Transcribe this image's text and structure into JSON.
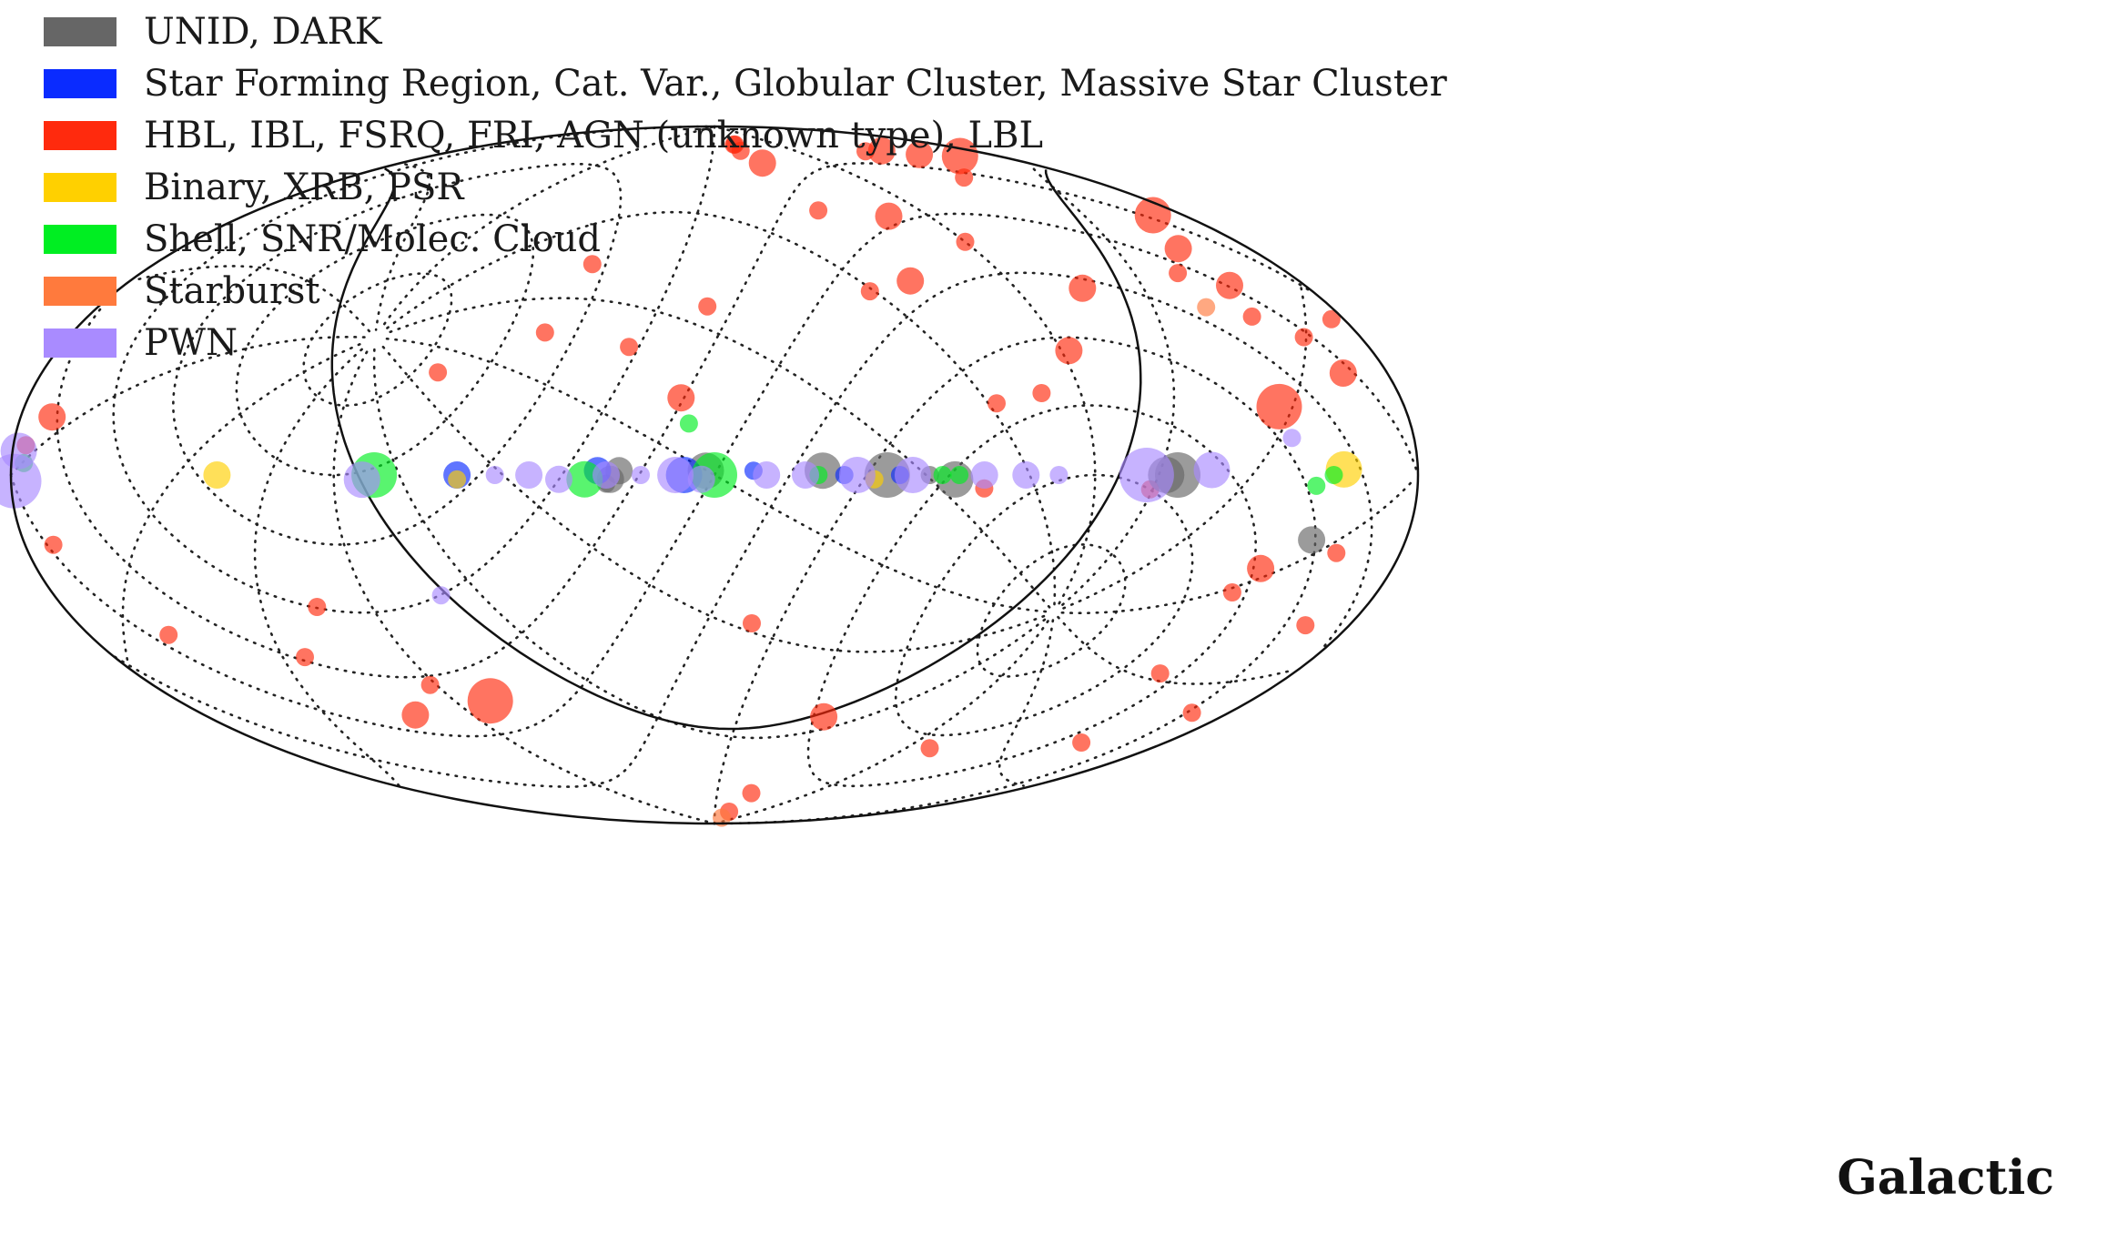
{
  "chart_data": {
    "type": "scatter",
    "projection": "Hammer-Aitoff (galactic, grid dotted, ecliptic equator overlaid)",
    "coordinate_frame": "Galactic",
    "legend_position": "top-left",
    "grid": true,
    "series": [
      {
        "name": "UNID, DARK",
        "color": "#666666"
      },
      {
        "name": "Star Forming Region, Cat. Var., Globular Cluster, Massive Star Cluster",
        "color": "#0a2bff"
      },
      {
        "name": "HBL, IBL, FSRQ, FRI, AGN (unknown type), LBL",
        "color": "#ff2a0d"
      },
      {
        "name": "Binary, XRB, PSR",
        "color": "#ffd000"
      },
      {
        "name": "Shell, SNR/Molec. Cloud",
        "color": "#00ee22"
      },
      {
        "name": "Starburst",
        "color": "#ff7a3d"
      },
      {
        "name": "PWN",
        "color": "#a98bff"
      }
    ],
    "points": [
      {
        "s": 2,
        "l": 167,
        "b": 69,
        "size": 4
      },
      {
        "s": 2,
        "l": 154,
        "b": 72,
        "size": 3
      },
      {
        "s": 2,
        "l": 145,
        "b": 75,
        "size": 3
      },
      {
        "s": 2,
        "l": 136,
        "b": 76,
        "size": 2
      },
      {
        "s": 2,
        "l": 138,
        "b": 66,
        "size": 2
      },
      {
        "s": 2,
        "l": 170,
        "b": 50,
        "size": 4
      },
      {
        "s": 2,
        "l": 157,
        "b": 44,
        "size": 3
      },
      {
        "s": 2,
        "l": 156,
        "b": 36,
        "size": 3
      },
      {
        "s": 2,
        "l": 162,
        "b": 25,
        "size": 2
      },
      {
        "s": 2,
        "l": 145,
        "b": 40,
        "size": 2
      },
      {
        "s": 2,
        "l": 152,
        "b": 30,
        "size": 2
      },
      {
        "s": 2,
        "l": 176,
        "b": 27,
        "size": 2
      },
      {
        "s": 2,
        "l": 166,
        "b": 18,
        "size": 3
      },
      {
        "s": 2,
        "l": 142,
        "b": 13,
        "size": 5
      },
      {
        "s": 2,
        "l": 110,
        "b": 40,
        "size": 3
      },
      {
        "s": 2,
        "l": 92,
        "b": 27,
        "size": 3
      },
      {
        "s": 2,
        "l": 80,
        "b": 18,
        "size": 2
      },
      {
        "s": 2,
        "l": 68,
        "b": 16,
        "size": 2
      },
      {
        "s": 2,
        "l": 90,
        "b": 53,
        "size": 2
      },
      {
        "s": 2,
        "l": 74,
        "b": 61,
        "size": 3
      },
      {
        "s": 2,
        "l": 60,
        "b": 45,
        "size": 3
      },
      {
        "s": 2,
        "l": 46,
        "b": 43,
        "size": 2
      },
      {
        "s": 2,
        "l": 47,
        "b": 64,
        "size": 2
      },
      {
        "s": 2,
        "l": 42,
        "b": 78,
        "size": 3
      },
      {
        "s": 2,
        "l": 33,
        "b": 82,
        "size": 2
      },
      {
        "s": 2,
        "l": 34,
        "b": 84,
        "size": 2
      },
      {
        "s": 2,
        "l": 32,
        "b": 84,
        "size": 2
      },
      {
        "s": 2,
        "l": -40,
        "b": 50,
        "size": 2
      },
      {
        "s": 2,
        "l": -45,
        "b": 33,
        "size": 2
      },
      {
        "s": 2,
        "l": -22,
        "b": 30,
        "size": 2
      },
      {
        "s": 2,
        "l": -2,
        "b": 40,
        "size": 2
      },
      {
        "s": 2,
        "l": -69,
        "b": 23,
        "size": 2
      },
      {
        "s": 2,
        "l": -8,
        "b": 18,
        "size": 3
      },
      {
        "s": 2,
        "l": -105,
        "b": -28,
        "size": 2
      },
      {
        "s": 2,
        "l": -121,
        "b": -38,
        "size": 2
      },
      {
        "s": 2,
        "l": -110,
        "b": -53,
        "size": 3
      },
      {
        "s": 2,
        "l": -92,
        "b": -47,
        "size": 2
      },
      {
        "s": 2,
        "l": -78,
        "b": -52,
        "size": 5
      },
      {
        "s": 2,
        "l": -176,
        "b": 5,
        "size": 2
      },
      {
        "s": 2,
        "l": -170,
        "b": 10,
        "size": 3
      },
      {
        "s": 2,
        "l": -171,
        "b": -12,
        "size": 2
      },
      {
        "s": 2,
        "l": -155,
        "b": -30,
        "size": 2
      },
      {
        "s": 2,
        "l": 10,
        "b": -35,
        "size": 2
      },
      {
        "s": 2,
        "l": 42,
        "b": -58,
        "size": 3
      },
      {
        "s": 2,
        "l": 38,
        "b": -80,
        "size": 2
      },
      {
        "s": 2,
        "l": 36,
        "b": -86,
        "size": 2
      },
      {
        "s": 2,
        "l": 100,
        "b": -63,
        "size": 2
      },
      {
        "s": 2,
        "l": 140,
        "b": -18,
        "size": 3
      },
      {
        "s": 2,
        "l": 136,
        "b": -23,
        "size": 2
      },
      {
        "s": 2,
        "l": 160,
        "b": -14,
        "size": 2
      },
      {
        "s": 2,
        "l": 166,
        "b": -27,
        "size": 2
      },
      {
        "s": 2,
        "l": 168,
        "b": -45,
        "size": 2
      },
      {
        "s": 2,
        "l": 138,
        "b": -40,
        "size": 2
      },
      {
        "s": 2,
        "l": 152,
        "b": -55,
        "size": 2
      },
      {
        "s": 2,
        "l": 104,
        "b": -3,
        "size": 2
      },
      {
        "s": 2,
        "l": 63,
        "b": -3,
        "size": 2
      },
      {
        "s": 0,
        "l": 111,
        "b": 0,
        "size": 5
      },
      {
        "s": 0,
        "l": 108,
        "b": 0,
        "size": 4
      },
      {
        "s": 0,
        "l": 56,
        "b": -1,
        "size": 4
      },
      {
        "s": 0,
        "l": 50,
        "b": 0,
        "size": 2
      },
      {
        "s": 0,
        "l": 40,
        "b": 0,
        "size": 5
      },
      {
        "s": 0,
        "l": 25,
        "b": 1,
        "size": 4
      },
      {
        "s": 0,
        "l": -2,
        "b": 1,
        "size": 4
      },
      {
        "s": 0,
        "l": -22,
        "b": 1,
        "size": 3
      },
      {
        "s": 0,
        "l": -24,
        "b": -1,
        "size": 3
      },
      {
        "s": 0,
        "l": -25,
        "b": -2,
        "size": 2
      },
      {
        "s": 0,
        "l": 151,
        "b": -12,
        "size": 3
      },
      {
        "s": 1,
        "l": 43,
        "b": 0,
        "size": 2
      },
      {
        "s": 1,
        "l": 30,
        "b": 0,
        "size": 2
      },
      {
        "s": 1,
        "l": 9,
        "b": 1,
        "size": 2
      },
      {
        "s": 1,
        "l": -7,
        "b": 0,
        "size": 4
      },
      {
        "s": 1,
        "l": -27,
        "b": 1,
        "size": 3
      },
      {
        "s": 1,
        "l": -60,
        "b": 0,
        "size": 3
      },
      {
        "s": 3,
        "l": 37,
        "b": -1,
        "size": 2
      },
      {
        "s": 3,
        "l": -60,
        "b": -1,
        "size": 2
      },
      {
        "s": 3,
        "l": -120,
        "b": 0,
        "size": 3
      },
      {
        "s": 3,
        "l": 157,
        "b": 1,
        "size": 4
      },
      {
        "s": 4,
        "l": 24,
        "b": 0,
        "size": 2
      },
      {
        "s": 4,
        "l": 57,
        "b": 0,
        "size": 2
      },
      {
        "s": 4,
        "l": 53,
        "b": 0,
        "size": 2
      },
      {
        "s": 4,
        "l": 0,
        "b": 0,
        "size": 5
      },
      {
        "s": 4,
        "l": -30,
        "b": -1,
        "size": 4
      },
      {
        "s": 4,
        "l": -80,
        "b": 0,
        "size": 5
      },
      {
        "s": 4,
        "l": -6,
        "b": 12,
        "size": 2
      },
      {
        "s": 4,
        "l": -176,
        "b": 2,
        "size": 2
      },
      {
        "s": 4,
        "l": 154,
        "b": 0,
        "size": 2
      },
      {
        "s": 4,
        "l": 149,
        "b": -2,
        "size": 2
      },
      {
        "s": 5,
        "l": 141,
        "b": 33,
        "size": 2
      },
      {
        "s": 5,
        "l": 35,
        "b": -88,
        "size": 2
      },
      {
        "s": 6,
        "l": 103,
        "b": 0,
        "size": 6
      },
      {
        "s": 6,
        "l": 120,
        "b": 1,
        "size": 4
      },
      {
        "s": 6,
        "l": 143,
        "b": 7,
        "size": 2
      },
      {
        "s": 6,
        "l": 81,
        "b": 0,
        "size": 2
      },
      {
        "s": 6,
        "l": 73,
        "b": 0,
        "size": 3
      },
      {
        "s": 6,
        "l": 63,
        "b": 0,
        "size": 3
      },
      {
        "s": 6,
        "l": 46,
        "b": 0,
        "size": 4
      },
      {
        "s": 6,
        "l": 33,
        "b": 0,
        "size": 4
      },
      {
        "s": 6,
        "l": 21,
        "b": 0,
        "size": 3
      },
      {
        "s": 6,
        "l": 12,
        "b": 0,
        "size": 3
      },
      {
        "s": 6,
        "l": -3,
        "b": -1,
        "size": 3
      },
      {
        "s": 6,
        "l": -9,
        "b": 0,
        "size": 4
      },
      {
        "s": 6,
        "l": -17,
        "b": 0,
        "size": 2
      },
      {
        "s": 6,
        "l": -25,
        "b": 0,
        "size": 3
      },
      {
        "s": 6,
        "l": -36,
        "b": -1,
        "size": 3
      },
      {
        "s": 6,
        "l": -43,
        "b": 0,
        "size": 3
      },
      {
        "s": 6,
        "l": -51,
        "b": 0,
        "size": 2
      },
      {
        "s": 6,
        "l": -83,
        "b": -1,
        "size": 4
      },
      {
        "s": 6,
        "l": -70,
        "b": -27,
        "size": 2
      },
      {
        "s": 6,
        "l": -178,
        "b": 4,
        "size": 4
      },
      {
        "s": 6,
        "l": -179,
        "b": -1,
        "size": 6
      }
    ]
  },
  "legend": {
    "items": [
      {
        "label": "UNID, DARK"
      },
      {
        "label": "Star Forming Region, Cat. Var., Globular Cluster, Massive Star Cluster"
      },
      {
        "label": "HBL, IBL, FSRQ, FRI, AGN (unknown type), LBL"
      },
      {
        "label": "Binary, XRB, PSR"
      },
      {
        "label": "Shell, SNR/Molec. Cloud"
      },
      {
        "label": "Starburst"
      },
      {
        "label": "PWN"
      }
    ]
  },
  "frame_label": "Galactic"
}
